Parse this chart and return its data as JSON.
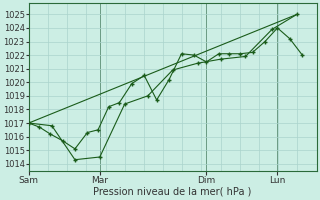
{
  "background_color": "#cceee4",
  "grid_color": "#aad4cc",
  "line_color": "#1a5c1a",
  "marker_color": "#1a5c1a",
  "xlabel": "Pression niveau de la mer( hPa )",
  "ylim": [
    1013.5,
    1025.8
  ],
  "yticks": [
    1014,
    1015,
    1016,
    1017,
    1018,
    1019,
    1020,
    1021,
    1022,
    1023,
    1024,
    1025
  ],
  "xtick_labels": [
    "Sam",
    "Mar",
    "Dim",
    "Lun"
  ],
  "xtick_positions": [
    0.0,
    2.0,
    5.0,
    7.0
  ],
  "vline_positions": [
    0.0,
    2.0,
    5.0,
    7.0
  ],
  "series1_x": [
    0.0,
    0.3,
    0.6,
    0.95,
    1.3,
    1.65,
    1.95,
    2.25,
    2.55,
    2.9,
    3.25,
    3.6,
    3.95,
    4.3,
    4.65,
    5.0,
    5.35,
    5.65,
    5.95,
    6.3,
    6.65,
    7.0,
    7.35,
    7.7
  ],
  "series1_y": [
    1017.0,
    1016.7,
    1016.2,
    1015.7,
    1015.1,
    1016.3,
    1016.5,
    1018.2,
    1018.5,
    1019.9,
    1020.5,
    1018.7,
    1020.2,
    1022.1,
    1022.0,
    1021.5,
    1022.1,
    1022.1,
    1022.1,
    1022.2,
    1023.0,
    1024.0,
    1023.2,
    1022.0
  ],
  "series2_x": [
    0.0,
    0.65,
    1.3,
    2.0,
    2.7,
    3.35,
    4.05,
    4.75,
    5.4,
    6.1,
    6.85,
    7.55
  ],
  "series2_y": [
    1017.0,
    1016.8,
    1014.3,
    1014.5,
    1018.4,
    1019.0,
    1020.9,
    1021.4,
    1021.7,
    1021.9,
    1023.9,
    1025.0
  ],
  "series3_x": [
    0.0,
    7.55
  ],
  "series3_y": [
    1017.0,
    1025.0
  ],
  "xlim": [
    0.0,
    8.1
  ],
  "num_xgrid_lines": 16
}
